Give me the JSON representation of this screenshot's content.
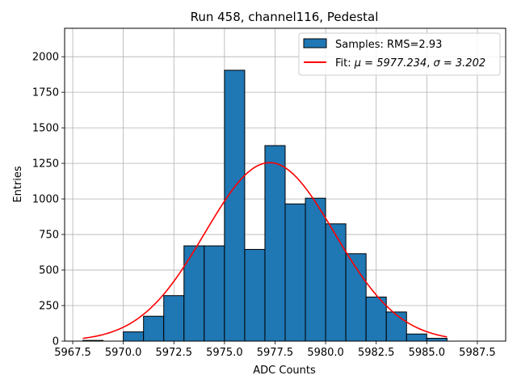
{
  "chart_data": {
    "type": "bar",
    "title": "Run 458, channel116, Pedestal",
    "xlabel": "ADC Counts",
    "ylabel": "Entries",
    "xlim": [
      5967.1,
      5988.9
    ],
    "ylim": [
      0,
      2200
    ],
    "xticks": [
      5967.5,
      5970.0,
      5972.5,
      5975.0,
      5977.5,
      5980.0,
      5982.5,
      5985.0,
      5987.5
    ],
    "xtick_labels": [
      "5967.5",
      "5970.0",
      "5972.5",
      "5975.0",
      "5977.5",
      "5980.0",
      "5982.5",
      "5985.0",
      "5987.5"
    ],
    "yticks": [
      0,
      250,
      500,
      750,
      1000,
      1250,
      1500,
      1750,
      2000
    ],
    "ytick_labels": [
      "0",
      "250",
      "500",
      "750",
      "1000",
      "1250",
      "1500",
      "1750",
      "2000"
    ],
    "grid": true,
    "legend_position": "top-right",
    "bins": [
      {
        "x0": 5968,
        "x1": 5969,
        "value": 5
      },
      {
        "x0": 5970,
        "x1": 5971,
        "value": 65
      },
      {
        "x0": 5971,
        "x1": 5972,
        "value": 175
      },
      {
        "x0": 5972,
        "x1": 5973,
        "value": 320
      },
      {
        "x0": 5973,
        "x1": 5974,
        "value": 670
      },
      {
        "x0": 5974,
        "x1": 5975,
        "value": 670
      },
      {
        "x0": 5975,
        "x1": 5976,
        "value": 1905
      },
      {
        "x0": 5976,
        "x1": 5977,
        "value": 645
      },
      {
        "x0": 5977,
        "x1": 5978,
        "value": 1375
      },
      {
        "x0": 5978,
        "x1": 5979,
        "value": 965
      },
      {
        "x0": 5979,
        "x1": 5980,
        "value": 1005
      },
      {
        "x0": 5980,
        "x1": 5981,
        "value": 825
      },
      {
        "x0": 5981,
        "x1": 5982,
        "value": 615
      },
      {
        "x0": 5982,
        "x1": 5983,
        "value": 310
      },
      {
        "x0": 5983,
        "x1": 5984,
        "value": 205
      },
      {
        "x0": 5984,
        "x1": 5985,
        "value": 50
      },
      {
        "x0": 5985,
        "x1": 5986,
        "value": 20
      }
    ],
    "fit": {
      "mu": 5977.234,
      "sigma": 3.202,
      "peak": 1255,
      "x_range": [
        5968,
        5986
      ]
    },
    "series": [
      {
        "name": "Samples: RMS=2.93",
        "kind": "histogram",
        "color": "#1f77b4"
      },
      {
        "name_prefix": "Fit: ",
        "mu_label": "μ = 5977.234",
        "sep": ", ",
        "sigma_label": "σ = 3.202",
        "kind": "line",
        "color": "#ff0000"
      }
    ]
  }
}
